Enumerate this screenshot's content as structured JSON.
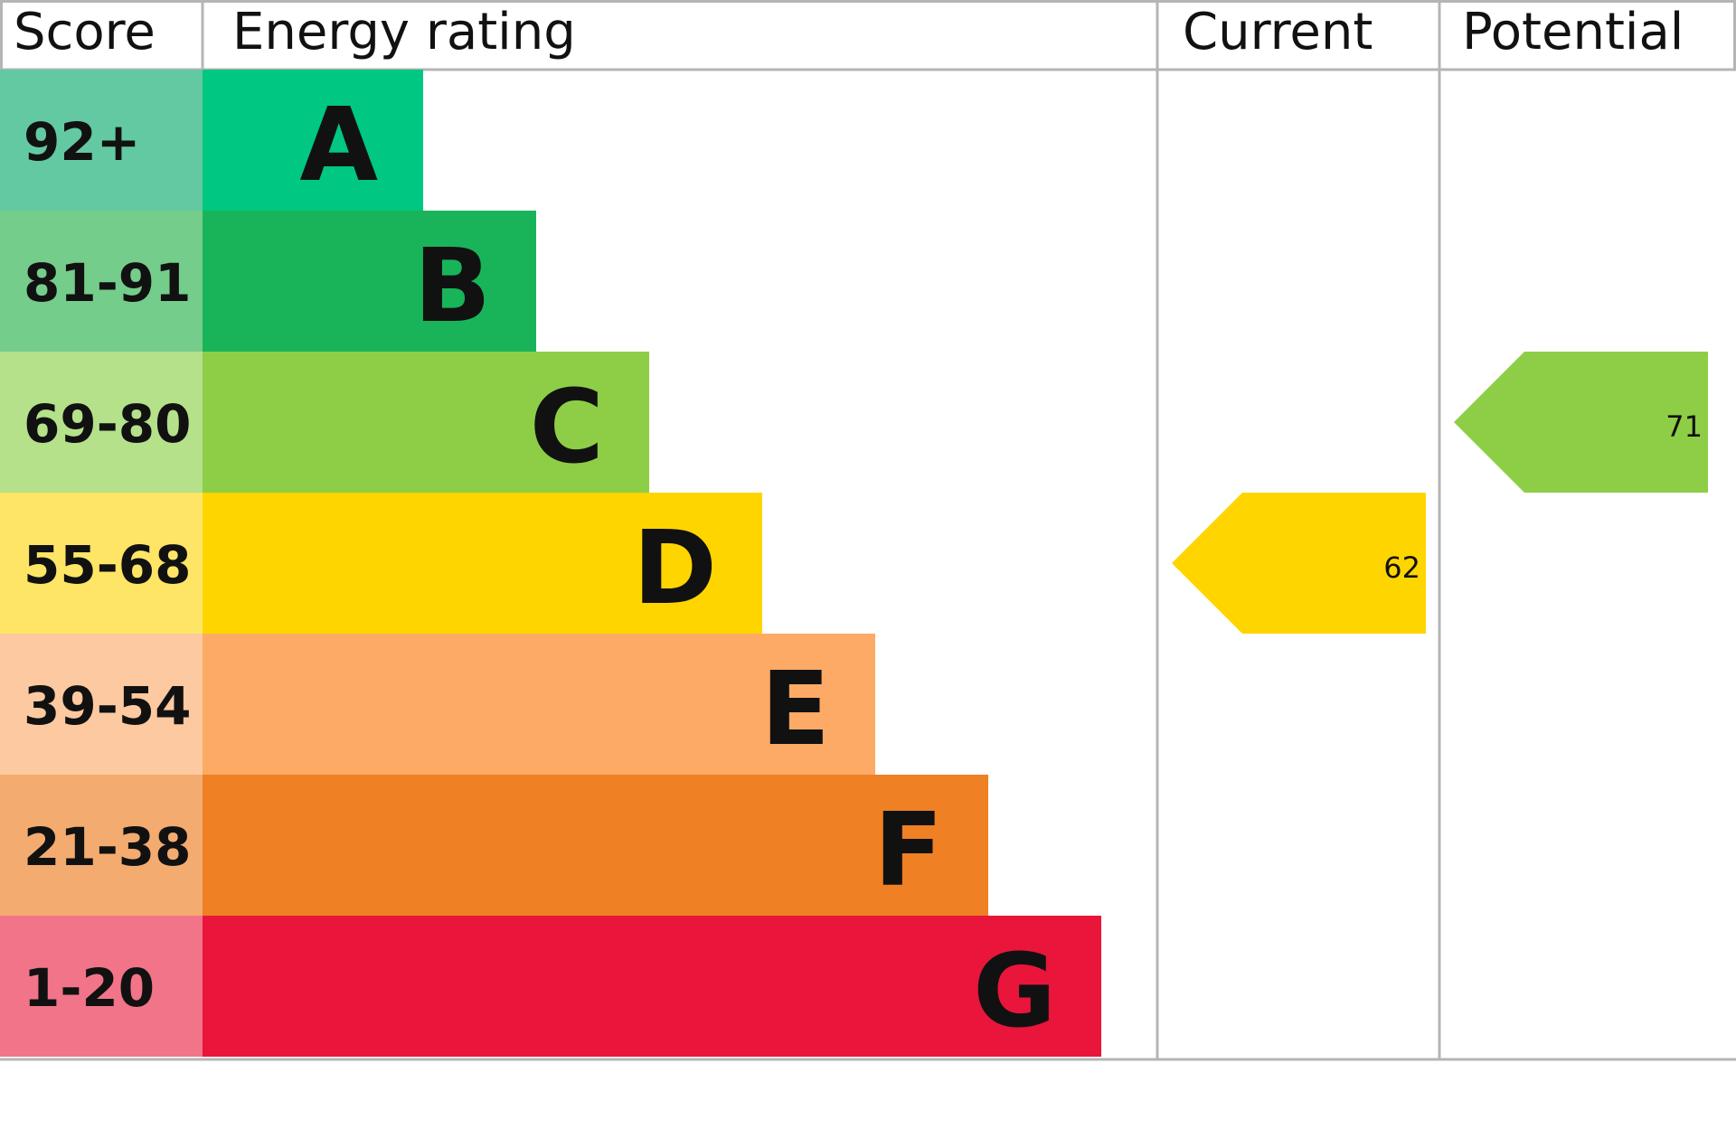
{
  "header": {
    "score": "Score",
    "rating": "Energy rating",
    "current": "Current",
    "potential": "Potential"
  },
  "bands": [
    {
      "score": "92+",
      "letter": "A",
      "color": "#00c781",
      "score_color": "#63c9a3"
    },
    {
      "score": "81-91",
      "letter": "B",
      "color": "#19b459",
      "score_color": "#75cd8b"
    },
    {
      "score": "69-80",
      "letter": "C",
      "color": "#8dce46",
      "score_color": "#b4e18a"
    },
    {
      "score": "55-68",
      "letter": "D",
      "color": "#ffd500",
      "score_color": "#ffe566"
    },
    {
      "score": "39-54",
      "letter": "E",
      "color": "#fcaa65",
      "score_color": "#fdc9a0"
    },
    {
      "score": "21-38",
      "letter": "F",
      "color": "#ef8023",
      "score_color": "#f4ab70"
    },
    {
      "score": "1-20",
      "letter": "G",
      "color": "#e9153b",
      "score_color": "#f27489"
    }
  ],
  "current": {
    "value": 62
  },
  "potential": {
    "value": 71
  }
}
